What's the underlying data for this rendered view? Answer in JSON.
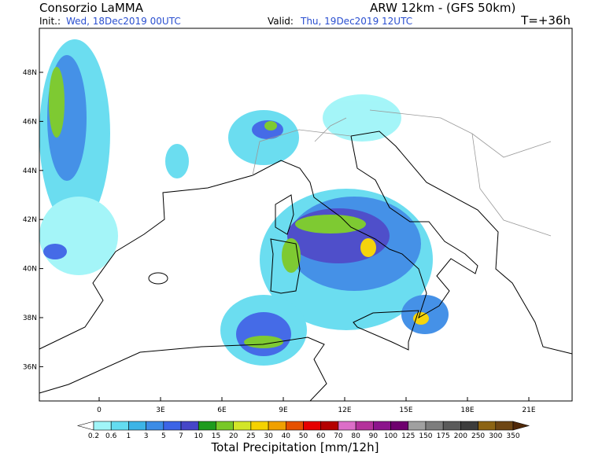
{
  "header": {
    "title": "Consorzio LaMMA",
    "model": "ARW 12km - (GFS 50km)",
    "init_label": "Init.:",
    "init_time": "Wed, 18Dec2019 00UTC",
    "valid_label": "Valid:",
    "valid_time": "Thu, 19Dec2019 12UTC",
    "lead_time": "T=+36h"
  },
  "map": {
    "longitude_labels": [
      "0",
      "3E",
      "6E",
      "9E",
      "12E",
      "15E",
      "18E",
      "21E"
    ],
    "latitude_labels": [
      "48N",
      "46N",
      "44N",
      "42N",
      "40N",
      "38N",
      "36N"
    ]
  },
  "colorbar": {
    "title": "Total Precipitation [mm/12h]",
    "levels": [
      "0.2",
      "0.6",
      "1",
      "3",
      "5",
      "7",
      "10",
      "15",
      "20",
      "25",
      "30",
      "40",
      "50",
      "60",
      "70",
      "80",
      "90",
      "100",
      "125",
      "150",
      "175",
      "200",
      "250",
      "300",
      "350"
    ],
    "colors": [
      "#a0f5f8",
      "#64dcf0",
      "#3cb4e6",
      "#3c8ce6",
      "#3c64e6",
      "#4646c8",
      "#1e9b1e",
      "#78c828",
      "#d2e628",
      "#f5d200",
      "#f0a000",
      "#e65000",
      "#e60000",
      "#b40000",
      "#dc6ec8",
      "#b4329b",
      "#8c148c",
      "#6e006e",
      "#a0a0a0",
      "#7d7d7d",
      "#5a5a5a",
      "#3c3c3c",
      "#8c6414",
      "#6e4614"
    ],
    "below_color": "#ffffff",
    "above_color": "#502808"
  }
}
